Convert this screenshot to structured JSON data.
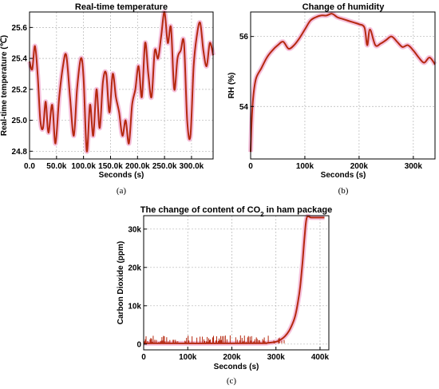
{
  "chart_data": [
    {
      "type": "line",
      "panel_label": "(a)",
      "title": "Real-time temperature",
      "xlabel": "Seconds (s)",
      "ylabel": "Real-time temperature (℃)",
      "xlim": [
        0,
        340000
      ],
      "ylim": [
        24.75,
        25.7
      ],
      "xticks": [
        0,
        50000,
        100000,
        150000,
        200000,
        250000,
        300000
      ],
      "xtick_labels": [
        "0.0",
        "50.0k",
        "100.0k",
        "150.0k",
        "200.0k",
        "250.0k",
        "300.0k"
      ],
      "yticks": [
        24.8,
        25.0,
        25.2,
        25.4,
        25.6
      ],
      "ytick_labels": [
        "24.8",
        "25.0",
        "25.2",
        "25.4",
        "25.6"
      ],
      "grid": true,
      "line_color": "#b5280f",
      "band_color": "#f3b6d6",
      "series": [
        {
          "x": [
            0,
            5000,
            10000,
            15000,
            20000,
            25000,
            30000,
            35000,
            42000,
            48000,
            55000,
            62000,
            68000,
            75000,
            82000,
            88000,
            95000,
            100000,
            106000,
            112000,
            118000,
            124000,
            130000,
            136000,
            142000,
            148000,
            154000,
            160000,
            166000,
            172000,
            178000,
            184000,
            190000,
            196000,
            202000,
            208000,
            214000,
            220000,
            226000,
            232000,
            238000,
            244000,
            250000,
            256000,
            262000,
            268000,
            274000,
            280000,
            286000,
            292000,
            298000,
            304000,
            310000,
            316000,
            322000,
            328000,
            334000,
            340000
          ],
          "y": [
            25.38,
            25.33,
            25.48,
            25.3,
            25.0,
            24.95,
            25.12,
            24.92,
            25.1,
            24.85,
            25.15,
            25.35,
            25.42,
            25.15,
            24.9,
            25.2,
            25.4,
            25.28,
            24.8,
            25.1,
            24.9,
            25.2,
            24.95,
            25.25,
            25.3,
            25.05,
            25.3,
            25.15,
            25.05,
            24.9,
            25.0,
            24.85,
            25.1,
            25.2,
            25.35,
            25.15,
            25.5,
            25.3,
            25.15,
            25.45,
            25.4,
            25.55,
            25.7,
            25.5,
            25.6,
            25.2,
            25.4,
            25.45,
            25.5,
            25.0,
            24.9,
            25.35,
            25.55,
            25.63,
            25.45,
            25.35,
            25.5,
            25.42
          ]
        }
      ]
    },
    {
      "type": "line",
      "panel_label": "(b)",
      "title": "Change of humidity",
      "xlabel": "Seconds (s)",
      "ylabel": "RH (%)",
      "xlim": [
        0,
        340000
      ],
      "ylim": [
        52.5,
        56.7
      ],
      "xticks": [
        0,
        100000,
        200000,
        300000
      ],
      "xtick_labels": [
        "0",
        "100k",
        "200k",
        "300k"
      ],
      "yticks": [
        54,
        56
      ],
      "ytick_labels": [
        "54",
        "56"
      ],
      "grid": true,
      "line_color": "#b5280f",
      "band_color": "#f3b6d6",
      "series": [
        {
          "x": [
            0,
            2000,
            5000,
            10000,
            20000,
            30000,
            40000,
            50000,
            60000,
            70000,
            80000,
            90000,
            100000,
            110000,
            120000,
            130000,
            140000,
            150000,
            160000,
            170000,
            180000,
            190000,
            200000,
            210000,
            215000,
            220000,
            230000,
            240000,
            250000,
            260000,
            270000,
            280000,
            290000,
            300000,
            310000,
            320000,
            330000,
            340000
          ],
          "y": [
            52.7,
            53.6,
            54.3,
            54.8,
            55.1,
            55.4,
            55.6,
            55.75,
            55.85,
            55.65,
            55.75,
            55.95,
            56.2,
            56.45,
            56.55,
            56.6,
            56.6,
            56.65,
            56.55,
            56.5,
            56.45,
            56.4,
            56.35,
            56.25,
            55.75,
            56.2,
            55.75,
            55.8,
            55.9,
            56.0,
            55.85,
            55.7,
            55.75,
            55.6,
            55.4,
            55.25,
            55.4,
            55.2
          ]
        }
      ]
    },
    {
      "type": "line",
      "panel_label": "(c)",
      "title_prefix": "The change of content of CO",
      "title_sub": "2",
      "title_suffix": " in ham package",
      "xlabel": "Seconds (s)",
      "ylabel": "Carbon Dioxide (ppm)",
      "xlim": [
        0,
        420000
      ],
      "ylim": [
        -1500,
        33500
      ],
      "xticks": [
        0,
        100000,
        200000,
        300000,
        400000
      ],
      "xtick_labels": [
        "0",
        "100k",
        "200k",
        "300k",
        "400k"
      ],
      "yticks": [
        0,
        10000,
        20000,
        30000
      ],
      "ytick_labels": [
        "0",
        "10k",
        "20k",
        "30k"
      ],
      "grid": true,
      "line_color": "#b5280f",
      "band_color": "#f3b6d6",
      "series": [
        {
          "x": [
            0,
            250000,
            280000,
            300000,
            310000,
            320000,
            330000,
            340000,
            345000,
            350000,
            355000,
            360000,
            365000,
            370000,
            380000,
            400000,
            410000
          ],
          "y": [
            200,
            200,
            300,
            600,
            1100,
            2000,
            3500,
            6000,
            8000,
            11000,
            15000,
            21000,
            28000,
            33000,
            33000,
            33000,
            33000
          ]
        }
      ],
      "spikes_baseline": 200,
      "spikes_x_range": [
        0,
        320000
      ],
      "spikes_max": 2300
    }
  ]
}
